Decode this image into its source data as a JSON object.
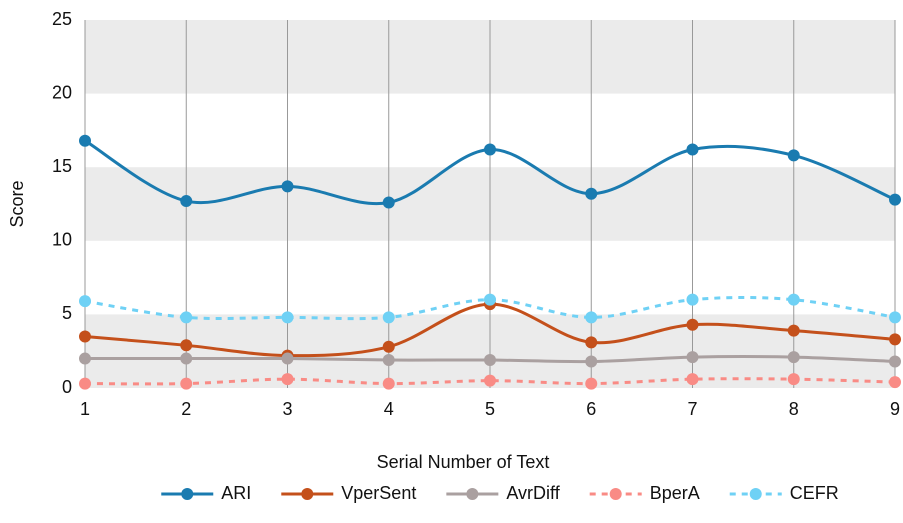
{
  "chart_data": {
    "type": "line",
    "x_label": "Serial Number of Text",
    "y_label": "Score",
    "x": [
      1,
      2,
      3,
      4,
      5,
      6,
      7,
      8,
      9
    ],
    "xlim": [
      1,
      9
    ],
    "xticks": [
      1,
      2,
      3,
      4,
      5,
      6,
      7,
      8,
      9
    ],
    "ylim": [
      0,
      25
    ],
    "yticks": [
      0,
      5,
      10,
      15,
      20,
      25
    ],
    "grid": true,
    "legend": "bottom",
    "smooth": true,
    "series": [
      {
        "name": "ARI",
        "color": "#1a7bb0",
        "style": "solid",
        "values": [
          16.8,
          12.7,
          13.7,
          12.6,
          16.2,
          13.2,
          16.2,
          15.8,
          12.8
        ]
      },
      {
        "name": "VperSent",
        "color": "#c4501b",
        "style": "solid",
        "values": [
          3.5,
          2.9,
          2.2,
          2.8,
          5.7,
          3.1,
          4.3,
          3.9,
          3.3
        ]
      },
      {
        "name": "AvrDiff",
        "color": "#aaa0a0",
        "style": "solid",
        "values": [
          2.0,
          2.0,
          2.0,
          1.9,
          1.9,
          1.8,
          2.1,
          2.1,
          1.8
        ]
      },
      {
        "name": "BperA",
        "color": "#f98b85",
        "style": "dashed",
        "values": [
          0.3,
          0.3,
          0.6,
          0.3,
          0.5,
          0.3,
          0.6,
          0.6,
          0.4
        ]
      },
      {
        "name": "CEFR",
        "color": "#6fd1f5",
        "style": "dashed",
        "values": [
          5.9,
          4.8,
          4.8,
          4.8,
          6.0,
          4.8,
          6.0,
          6.0,
          4.8
        ]
      }
    ]
  }
}
